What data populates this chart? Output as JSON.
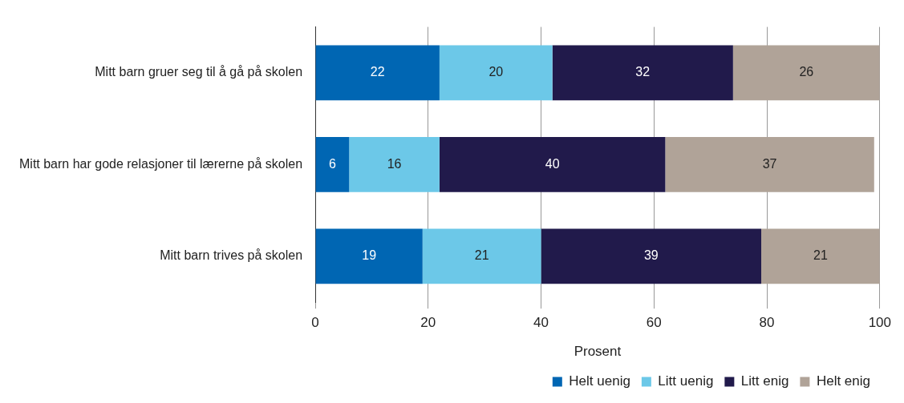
{
  "chart_data": {
    "type": "bar",
    "orientation": "horizontal",
    "stacked": true,
    "xlabel": "Prosent",
    "categories": [
      "Mitt barn gruer seg til å gå på skolen",
      "Mitt barn har gode relasjoner til lærerne på skolen",
      "Mitt barn trives på skolen"
    ],
    "series": [
      {
        "name": "Helt uenig",
        "color": "#0066b3",
        "values": [
          22,
          6,
          19
        ]
      },
      {
        "name": "Litt uenig",
        "color": "#6cc8e8",
        "values": [
          20,
          16,
          21
        ]
      },
      {
        "name": "Litt enig",
        "color": "#211a4b",
        "values": [
          32,
          40,
          39
        ]
      },
      {
        "name": "Helt enig",
        "color": "#b0a398",
        "values": [
          26,
          37,
          21
        ]
      }
    ],
    "xlim": [
      0,
      100
    ],
    "xticks": [
      0,
      20,
      40,
      60,
      80,
      100
    ],
    "grid": "x",
    "legend": "bottom",
    "data_labels": true
  }
}
